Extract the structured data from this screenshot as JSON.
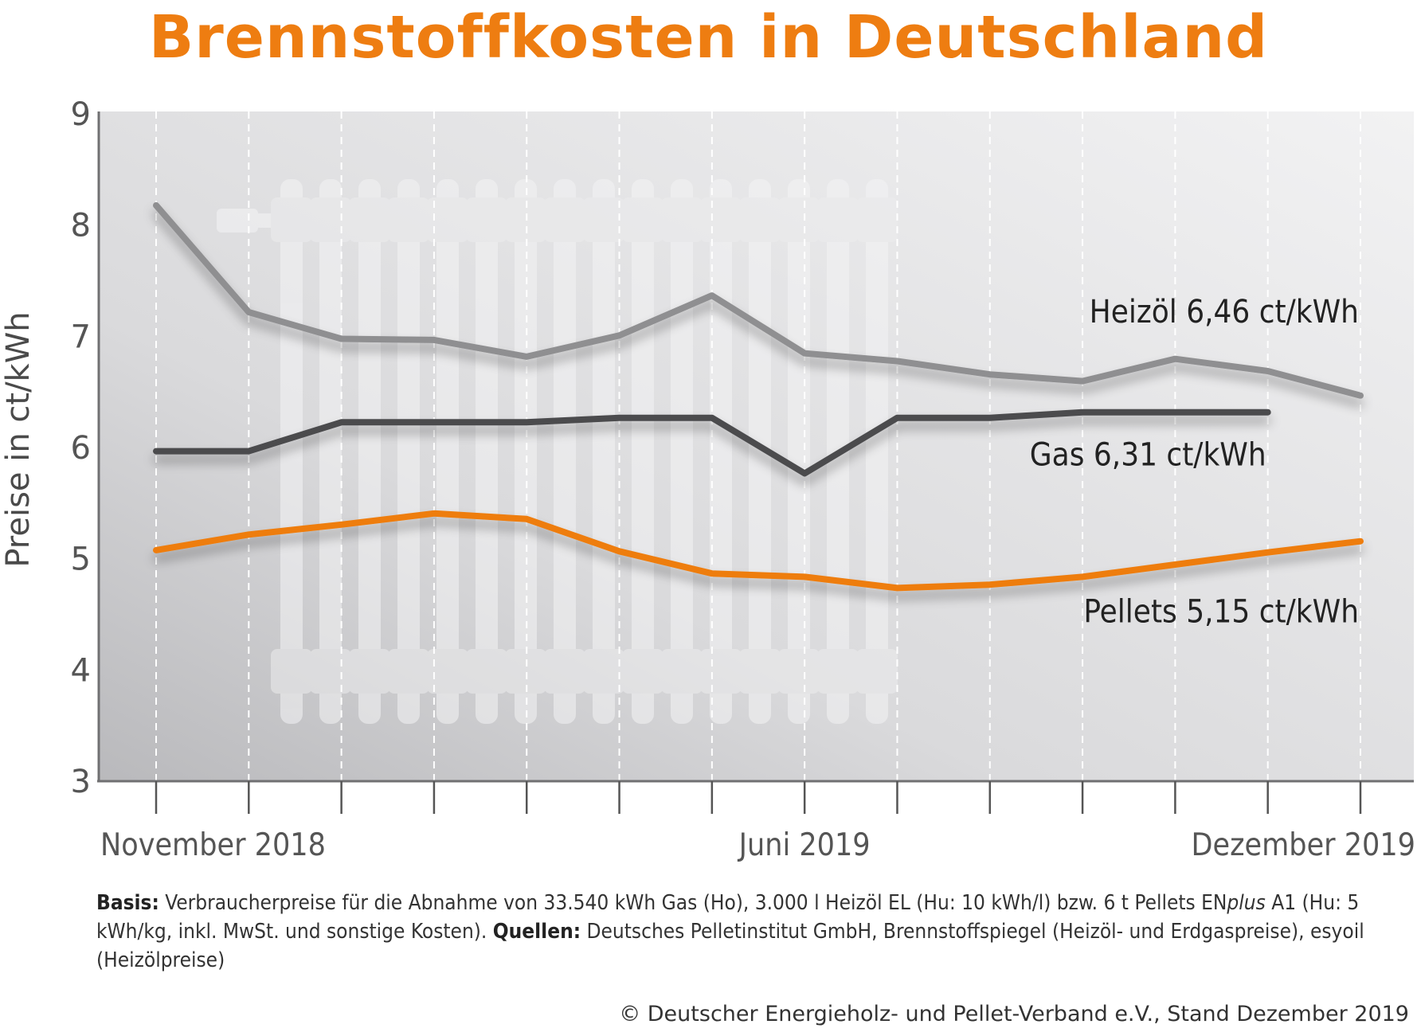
{
  "title": "Brennstoffkosten in Deutschland",
  "colors": {
    "accent": "#ee7d11",
    "heizoel": "#8f8f91",
    "gas": "#4b4b4e",
    "pellets": "#ee7d11",
    "plot_background": "#e4e4e6"
  },
  "chart_data": {
    "type": "line",
    "ylabel": "Preise in ct/kWh",
    "ylim": [
      3,
      9
    ],
    "yticks": [
      3,
      4,
      5,
      6,
      7,
      8,
      9
    ],
    "x": [
      "2018-11",
      "2018-12",
      "2019-01",
      "2019-02",
      "2019-03",
      "2019-04",
      "2019-05",
      "2019-06",
      "2019-07",
      "2019-08",
      "2019-09",
      "2019-10",
      "2019-11",
      "2019-12"
    ],
    "xtick_labels": [
      {
        "x": "2018-11",
        "label": "November 2018"
      },
      {
        "x": "2019-06",
        "label": "Juni 2019"
      },
      {
        "x": "2019-12",
        "label": "Dezember 2019"
      }
    ],
    "grid": "vertical dashed",
    "series": [
      {
        "key": "heizoel",
        "values": [
          8.17,
          7.21,
          6.97,
          6.96,
          6.81,
          7.0,
          7.36,
          6.84,
          6.77,
          6.65,
          6.59,
          6.79,
          6.68,
          6.46
        ],
        "label": "Heizöl 6,46 ct/kWh"
      },
      {
        "key": "gas",
        "values": [
          5.96,
          5.96,
          6.22,
          6.22,
          6.22,
          6.26,
          6.26,
          5.76,
          6.26,
          6.26,
          6.31,
          6.31,
          6.31,
          null
        ],
        "label": "Gas  6,31 ct/kWh"
      },
      {
        "key": "pellets",
        "values": [
          5.07,
          5.21,
          5.3,
          5.4,
          5.35,
          5.06,
          4.86,
          4.83,
          4.73,
          4.76,
          4.83,
          4.94,
          5.05,
          5.15
        ],
        "label": "Pellets  5,15 ct/kWh"
      }
    ]
  },
  "note": {
    "basis_label": "Basis:",
    "basis_text_1": " Verbraucherpreise für die Abnahme von 33.540 kWh Gas (Ho), 3.000 l Heizöl EL (Hu: 10 kWh/l) bzw. 6 t Pellets EN",
    "basis_italic": "plus",
    "basis_text_2": " A1 (Hu: 5 kWh/kg, inkl. MwSt. und sonstige Kosten). ",
    "sources_label": "Quellen:",
    "sources_text": " Deutsches Pelletinstitut GmbH, Brennstoffspiegel (Heizöl- und Erdgaspreise), esyoil (Heizölpreise)"
  },
  "copyright": "© Deutscher Energieholz- und Pellet-Verband e.V., Stand Dezember 2019"
}
